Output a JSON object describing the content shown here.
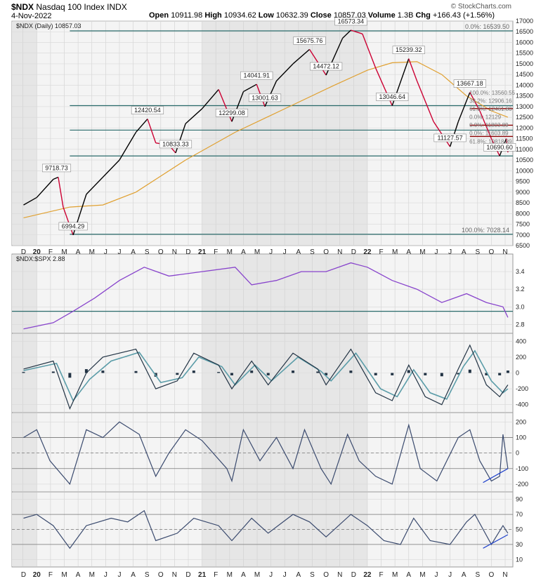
{
  "header": {
    "symbol": "$NDX",
    "name": "Nasdaq 100 Index",
    "exchange": "INDX",
    "date": "4-Nov-2022",
    "credit": "© StockCharts.com",
    "open_label": "Open",
    "open": "10911.98",
    "high_label": "High",
    "high": "10934.62",
    "low_label": "Low",
    "low": "10632.39",
    "close_label": "Close",
    "close": "10857.03",
    "volume_label": "Volume",
    "volume": "1.3B",
    "chg_label": "Chg",
    "chg": "+166.43 (+1.56%)"
  },
  "colors": {
    "price_up": "#000000",
    "price_down": "#cc0033",
    "moving_average": "#e0a030",
    "levels": "#2b6b6b",
    "ratio": "#8844cc",
    "macd": "#223344",
    "signal": "#5a9ca8",
    "osc": "#3a4a6e",
    "trendline": "#2244cc",
    "resistance": "#8b0000"
  },
  "chart_data": [
    {
      "panel": "price",
      "type": "line",
      "legend": "$NDX (Daily) 10857.03",
      "ylim": [
        6500,
        17000
      ],
      "y_ticks": [
        6500,
        7000,
        7500,
        8000,
        8500,
        9000,
        9500,
        10000,
        10500,
        11000,
        11500,
        12000,
        12500,
        13000,
        13500,
        14000,
        14500,
        15000,
        15500,
        16000,
        16500,
        17000
      ],
      "x_labels": [
        "D",
        "20",
        "F",
        "M",
        "A",
        "M",
        "J",
        "J",
        "A",
        "S",
        "O",
        "N",
        "D",
        "21",
        "F",
        "M",
        "A",
        "M",
        "J",
        "J",
        "A",
        "S",
        "O",
        "N",
        "D",
        "22",
        "F",
        "M",
        "A",
        "M",
        "J",
        "J",
        "A",
        "S",
        "O",
        "N"
      ],
      "series_points": [
        [
          2019.92,
          8400
        ],
        [
          2020.0,
          8750
        ],
        [
          2020.1,
          9600
        ],
        [
          2020.13,
          9700
        ],
        [
          2020.16,
          8300
        ],
        [
          2020.22,
          6994
        ],
        [
          2020.3,
          8900
        ],
        [
          2020.4,
          9700
        ],
        [
          2020.5,
          10500
        ],
        [
          2020.6,
          11800
        ],
        [
          2020.67,
          12420
        ],
        [
          2020.72,
          11300
        ],
        [
          2020.8,
          11200
        ],
        [
          2020.84,
          10833
        ],
        [
          2020.9,
          12200
        ],
        [
          2021.0,
          12900
        ],
        [
          2021.1,
          13800
        ],
        [
          2021.18,
          12299
        ],
        [
          2021.25,
          13700
        ],
        [
          2021.33,
          14041
        ],
        [
          2021.38,
          13001
        ],
        [
          2021.45,
          14200
        ],
        [
          2021.55,
          15000
        ],
        [
          2021.65,
          15675
        ],
        [
          2021.75,
          14472
        ],
        [
          2021.85,
          16200
        ],
        [
          2021.9,
          16573
        ],
        [
          2021.97,
          16400
        ],
        [
          2022.05,
          14800
        ],
        [
          2022.15,
          13046
        ],
        [
          2022.25,
          15239
        ],
        [
          2022.3,
          14200
        ],
        [
          2022.4,
          12300
        ],
        [
          2022.5,
          11127
        ],
        [
          2022.55,
          12300
        ],
        [
          2022.62,
          13667
        ],
        [
          2022.68,
          12800
        ],
        [
          2022.75,
          11500
        ],
        [
          2022.8,
          10690
        ],
        [
          2022.84,
          11500
        ],
        [
          2022.85,
          10857
        ]
      ],
      "moving_average_points": [
        [
          2019.92,
          7800
        ],
        [
          2020.2,
          8300
        ],
        [
          2020.4,
          8400
        ],
        [
          2020.6,
          9000
        ],
        [
          2020.9,
          10500
        ],
        [
          2021.2,
          11800
        ],
        [
          2021.5,
          12900
        ],
        [
          2021.8,
          14000
        ],
        [
          2022.0,
          14700
        ],
        [
          2022.15,
          15050
        ],
        [
          2022.3,
          15100
        ],
        [
          2022.45,
          14500
        ],
        [
          2022.6,
          13500
        ],
        [
          2022.75,
          12800
        ],
        [
          2022.85,
          12500
        ]
      ],
      "annotations": [
        {
          "label": "9718.73",
          "x": 2020.12,
          "y": 9718.73
        },
        {
          "label": "6994.29",
          "x": 2020.22,
          "y": 6994.29
        },
        {
          "label": "12420.54",
          "x": 2020.67,
          "y": 12420.54
        },
        {
          "label": "10833.33",
          "x": 2020.84,
          "y": 10833.33
        },
        {
          "label": "12299.08",
          "x": 2021.18,
          "y": 12299.08
        },
        {
          "label": "14041.91",
          "x": 2021.33,
          "y": 14041.91
        },
        {
          "label": "13001.63",
          "x": 2021.38,
          "y": 13001.63
        },
        {
          "label": "15675.76",
          "x": 2021.65,
          "y": 15675.76
        },
        {
          "label": "14472.12",
          "x": 2021.75,
          "y": 14472.12
        },
        {
          "label": "16573.34",
          "x": 2021.9,
          "y": 16573.34
        },
        {
          "label": "15239.32",
          "x": 2022.25,
          "y": 15239.32
        },
        {
          "label": "13046.64",
          "x": 2022.15,
          "y": 13046.64
        },
        {
          "label": "13667.18",
          "x": 2022.62,
          "y": 13667.18
        },
        {
          "label": "11127.57",
          "x": 2022.5,
          "y": 11127.57
        },
        {
          "label": "10690.60",
          "x": 2022.8,
          "y": 10690.6
        }
      ],
      "levels": [
        {
          "value": 16539.5,
          "label": "0.0%: 16539.50"
        },
        {
          "value": 13046.64,
          "label": ""
        },
        {
          "value": 11900,
          "label": ""
        },
        {
          "value": 10690.6,
          "label": ""
        },
        {
          "value": 7028.14,
          "label": "100.0%: 7028.14"
        }
      ],
      "fib_labels": [
        "100.0%: 13560.55",
        "38.2%: 12906.16",
        "61.8%: 12461.80",
        "0.0%: 12129",
        "0.0%: 11803.89",
        "0.0%: 11603.89",
        "61.8%: 10818.89"
      ]
    },
    {
      "panel": "ratio",
      "type": "line",
      "legend": "$NDX:$SPX 2.88",
      "ylim": [
        2.7,
        3.6
      ],
      "y_ticks": [
        2.8,
        3.0,
        3.2,
        3.4
      ],
      "level": 2.95,
      "points": [
        [
          2019.92,
          2.75
        ],
        [
          2020.1,
          2.82
        ],
        [
          2020.22,
          2.95
        ],
        [
          2020.35,
          3.1
        ],
        [
          2020.5,
          3.3
        ],
        [
          2020.65,
          3.45
        ],
        [
          2020.8,
          3.35
        ],
        [
          2021.0,
          3.4
        ],
        [
          2021.2,
          3.45
        ],
        [
          2021.3,
          3.25
        ],
        [
          2021.45,
          3.3
        ],
        [
          2021.6,
          3.4
        ],
        [
          2021.75,
          3.4
        ],
        [
          2021.9,
          3.5
        ],
        [
          2022.0,
          3.45
        ],
        [
          2022.15,
          3.3
        ],
        [
          2022.3,
          3.2
        ],
        [
          2022.45,
          3.05
        ],
        [
          2022.6,
          3.15
        ],
        [
          2022.72,
          3.05
        ],
        [
          2022.82,
          3.0
        ],
        [
          2022.85,
          2.88
        ]
      ]
    },
    {
      "panel": "macd",
      "type": "line",
      "ylim": [
        -500,
        500
      ],
      "y_ticks": [
        -400,
        -200,
        0,
        200,
        400
      ],
      "macd_points": [
        [
          2019.92,
          50
        ],
        [
          2020.1,
          150
        ],
        [
          2020.2,
          -450
        ],
        [
          2020.3,
          0
        ],
        [
          2020.4,
          200
        ],
        [
          2020.6,
          300
        ],
        [
          2020.72,
          -200
        ],
        [
          2020.85,
          -100
        ],
        [
          2020.95,
          250
        ],
        [
          2021.1,
          100
        ],
        [
          2021.18,
          -200
        ],
        [
          2021.3,
          150
        ],
        [
          2021.4,
          -150
        ],
        [
          2021.55,
          250
        ],
        [
          2021.7,
          50
        ],
        [
          2021.75,
          -150
        ],
        [
          2021.9,
          300
        ],
        [
          2022.05,
          -250
        ],
        [
          2022.15,
          -350
        ],
        [
          2022.25,
          100
        ],
        [
          2022.35,
          -300
        ],
        [
          2022.45,
          -400
        ],
        [
          2022.55,
          50
        ],
        [
          2022.62,
          350
        ],
        [
          2022.72,
          -150
        ],
        [
          2022.8,
          -300
        ],
        [
          2022.85,
          -150
        ]
      ],
      "signal_points": [
        [
          2019.92,
          30
        ],
        [
          2020.12,
          120
        ],
        [
          2020.22,
          -350
        ],
        [
          2020.32,
          -80
        ],
        [
          2020.45,
          150
        ],
        [
          2020.62,
          260
        ],
        [
          2020.75,
          -120
        ],
        [
          2020.88,
          -60
        ],
        [
          2020.98,
          200
        ],
        [
          2021.12,
          80
        ],
        [
          2021.2,
          -150
        ],
        [
          2021.32,
          100
        ],
        [
          2021.42,
          -100
        ],
        [
          2021.58,
          200
        ],
        [
          2021.72,
          20
        ],
        [
          2021.78,
          -100
        ],
        [
          2021.93,
          250
        ],
        [
          2022.08,
          -200
        ],
        [
          2022.18,
          -300
        ],
        [
          2022.28,
          40
        ],
        [
          2022.38,
          -250
        ],
        [
          2022.48,
          -330
        ],
        [
          2022.58,
          80
        ],
        [
          2022.65,
          280
        ],
        [
          2022.75,
          -100
        ],
        [
          2022.82,
          -250
        ],
        [
          2022.85,
          -200
        ]
      ]
    },
    {
      "panel": "oscillator",
      "type": "line",
      "ylim": [
        -250,
        260
      ],
      "y_ticks": [
        -200,
        -100,
        0,
        100,
        200
      ],
      "levels": [
        100,
        0,
        -100
      ],
      "points": [
        [
          2019.92,
          100
        ],
        [
          2020.0,
          150
        ],
        [
          2020.08,
          -50
        ],
        [
          2020.2,
          -200
        ],
        [
          2020.3,
          150
        ],
        [
          2020.4,
          100
        ],
        [
          2020.5,
          200
        ],
        [
          2020.62,
          120
        ],
        [
          2020.72,
          -150
        ],
        [
          2020.8,
          0
        ],
        [
          2020.9,
          150
        ],
        [
          2021.0,
          80
        ],
        [
          2021.15,
          -100
        ],
        [
          2021.18,
          -180
        ],
        [
          2021.25,
          150
        ],
        [
          2021.35,
          -50
        ],
        [
          2021.45,
          100
        ],
        [
          2021.55,
          -100
        ],
        [
          2021.62,
          150
        ],
        [
          2021.72,
          -100
        ],
        [
          2021.78,
          -200
        ],
        [
          2021.88,
          120
        ],
        [
          2021.95,
          -50
        ],
        [
          2022.05,
          -150
        ],
        [
          2022.15,
          -200
        ],
        [
          2022.25,
          180
        ],
        [
          2022.32,
          -100
        ],
        [
          2022.42,
          -180
        ],
        [
          2022.55,
          100
        ],
        [
          2022.62,
          150
        ],
        [
          2022.68,
          -50
        ],
        [
          2022.75,
          -180
        ],
        [
          2022.8,
          -150
        ],
        [
          2022.82,
          120
        ],
        [
          2022.85,
          -100
        ]
      ],
      "trendline": [
        [
          2022.7,
          -190
        ],
        [
          2022.85,
          -100
        ]
      ]
    },
    {
      "panel": "rsi",
      "type": "line",
      "ylim": [
        0,
        100
      ],
      "y_ticks": [
        10,
        30,
        50,
        70,
        90
      ],
      "levels": [
        70,
        50,
        30
      ],
      "points": [
        [
          2019.92,
          65
        ],
        [
          2020.0,
          70
        ],
        [
          2020.1,
          55
        ],
        [
          2020.2,
          25
        ],
        [
          2020.3,
          55
        ],
        [
          2020.45,
          65
        ],
        [
          2020.55,
          60
        ],
        [
          2020.65,
          75
        ],
        [
          2020.72,
          35
        ],
        [
          2020.85,
          45
        ],
        [
          2020.95,
          65
        ],
        [
          2021.1,
          55
        ],
        [
          2021.18,
          35
        ],
        [
          2021.3,
          65
        ],
        [
          2021.4,
          45
        ],
        [
          2021.55,
          70
        ],
        [
          2021.65,
          60
        ],
        [
          2021.75,
          40
        ],
        [
          2021.9,
          70
        ],
        [
          2022.0,
          55
        ],
        [
          2022.1,
          35
        ],
        [
          2022.2,
          30
        ],
        [
          2022.28,
          65
        ],
        [
          2022.38,
          35
        ],
        [
          2022.5,
          30
        ],
        [
          2022.6,
          60
        ],
        [
          2022.65,
          70
        ],
        [
          2022.75,
          30
        ],
        [
          2022.82,
          55
        ],
        [
          2022.85,
          45
        ]
      ],
      "trendline": [
        [
          2022.7,
          25
        ],
        [
          2022.85,
          43
        ]
      ]
    }
  ]
}
